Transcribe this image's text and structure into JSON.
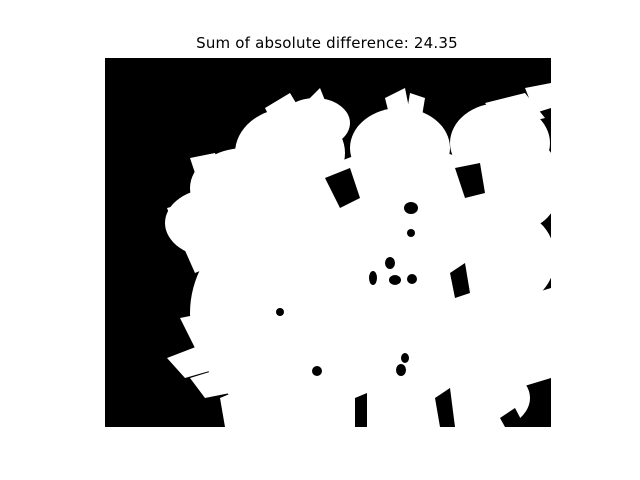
{
  "figure": {
    "title": "Sum of absolute difference: 24.35"
  },
  "image": {
    "subject": "binary-mask-of-flower-cluster",
    "background_color": "#000000",
    "foreground_color": "#ffffff"
  }
}
